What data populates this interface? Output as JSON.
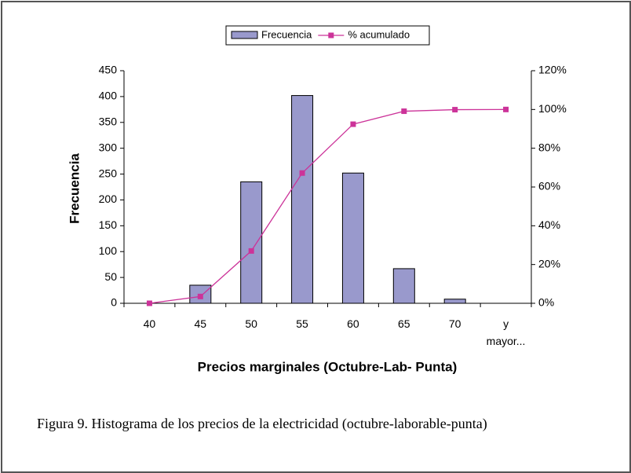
{
  "chart_data": {
    "type": "bar-line",
    "x_label": "Precios marginales (Octubre-Lab- Punta)",
    "y_label": "Frecuencia",
    "categories": [
      "40",
      "45",
      "50",
      "55",
      "60",
      "65",
      "70",
      "y\nmayor..."
    ],
    "series": [
      {
        "name": "Frecuencia",
        "type": "bar",
        "color": "#9999cc",
        "values": [
          0,
          35,
          235,
          402,
          252,
          67,
          8,
          0
        ]
      },
      {
        "name": "% acumulado",
        "type": "line",
        "axis": "y2",
        "color": "#cc3399",
        "values": [
          0,
          3.5,
          27,
          67.2,
          92.4,
          99.1,
          99.9,
          100
        ]
      }
    ],
    "ylim": [
      0,
      450
    ],
    "yticks": [
      0,
      50,
      100,
      150,
      200,
      250,
      300,
      350,
      400,
      450
    ],
    "y2lim": [
      0,
      120
    ],
    "y2ticks": [
      {
        "value": 0,
        "label": "0%"
      },
      {
        "value": 20,
        "label": "20%"
      },
      {
        "value": 40,
        "label": "40%"
      },
      {
        "value": 60,
        "label": "60%"
      },
      {
        "value": 80,
        "label": "80%"
      },
      {
        "value": 100,
        "label": "100%"
      },
      {
        "value": 120,
        "label": "120%"
      }
    ],
    "legend": "top",
    "grid": false
  },
  "caption": "Figura 9. Histograma de los precios de la electricidad (octubre-laborable-punta)"
}
